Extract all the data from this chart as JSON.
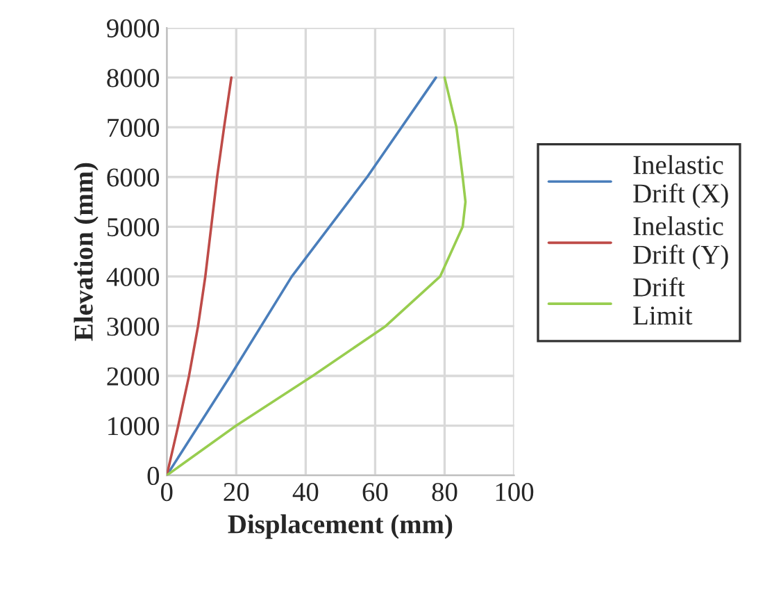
{
  "chart_data": {
    "type": "line",
    "xlabel": "Displacement (mm)",
    "ylabel": "Elevation (mm)",
    "xlim": [
      0,
      100
    ],
    "xticks": [
      0,
      20,
      40,
      60,
      80,
      100
    ],
    "ylim": [
      0,
      9000
    ],
    "yticks": [
      0,
      1000,
      2000,
      3000,
      4000,
      5000,
      6000,
      7000,
      8000,
      9000
    ],
    "grid": true,
    "legend": "right",
    "marker": "none",
    "line_style": "solid",
    "series": [
      {
        "name": "Inelastic Drift (X)",
        "color": "#4a7ebb",
        "x": [
          0,
          18.3,
          36,
          57.7,
          77.5
        ],
        "values": [
          0,
          2000,
          4000,
          6000,
          8000
        ]
      },
      {
        "name": "Inelastic Drift (Y)",
        "color": "#be4b48",
        "x": [
          0,
          3.3,
          6.4,
          9,
          11.1,
          12.8,
          14.5,
          16.5,
          18.6
        ],
        "values": [
          0,
          1000,
          2000,
          3000,
          4000,
          5000,
          6000,
          7000,
          8000
        ]
      },
      {
        "name": "Drift Limit",
        "color": "#98cd4f",
        "x": [
          0,
          20,
          42,
          63,
          78.7,
          85.2,
          86,
          85.2,
          83.4,
          80
        ],
        "values": [
          0,
          1000,
          2000,
          3000,
          4000,
          5000,
          5500,
          6000,
          7000,
          8000
        ]
      }
    ]
  }
}
